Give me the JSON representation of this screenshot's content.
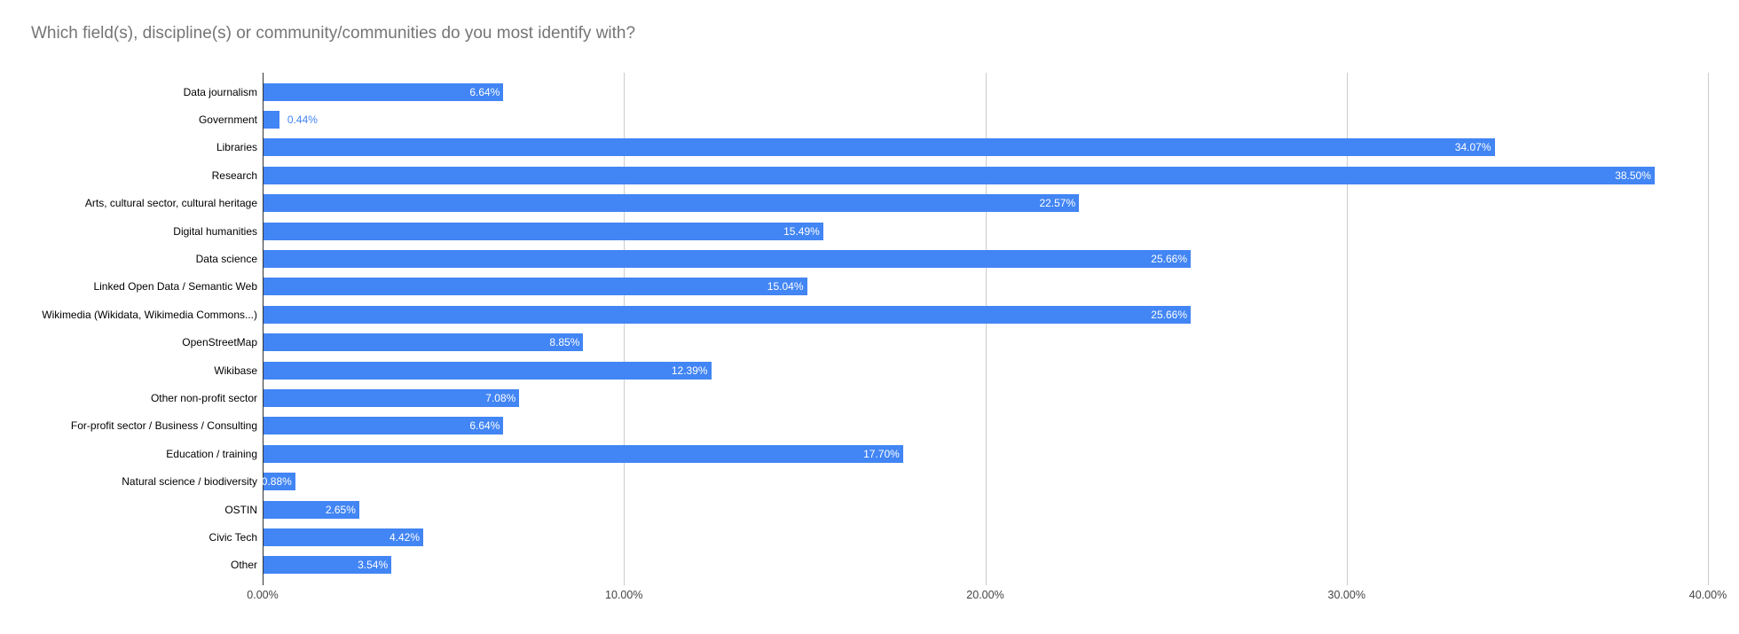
{
  "chart_data": {
    "type": "bar",
    "orientation": "horizontal",
    "title": "Which field(s), discipline(s) or community/communities do you most identify with?",
    "categories": [
      "Data journalism",
      "Government",
      "Libraries",
      "Research",
      "Arts, cultural sector, cultural heritage",
      "Digital humanities",
      "Data science",
      "Linked Open Data / Semantic Web",
      "Wikimedia (Wikidata, Wikimedia Commons...)",
      "OpenStreetMap",
      "Wikibase",
      "Other non-profit sector",
      "For-profit sector / Business / Consulting",
      "Education / training",
      "Natural science / biodiversity",
      "OSTIN",
      "Civic Tech",
      "Other"
    ],
    "values": [
      6.64,
      0.44,
      34.07,
      38.5,
      22.57,
      15.49,
      25.66,
      15.04,
      25.66,
      8.85,
      12.39,
      7.08,
      6.64,
      17.7,
      0.88,
      2.65,
      4.42,
      3.54
    ],
    "value_labels": [
      "6.64%",
      "0.44%",
      "34.07%",
      "38.50%",
      "22.57%",
      "15.49%",
      "25.66%",
      "15.04%",
      "25.66%",
      "8.85%",
      "12.39%",
      "7.08%",
      "6.64%",
      "17.70%",
      "0.88%",
      "2.65%",
      "4.42%",
      "3.54%"
    ],
    "xlabel": "",
    "ylabel": "",
    "xlim": [
      0,
      40
    ],
    "x_tick_values": [
      0,
      10,
      20,
      30,
      40
    ],
    "x_tick_labels": [
      "0.00%",
      "10.00%",
      "20.00%",
      "30.00%",
      "40.00%"
    ],
    "grid": true,
    "legend": "none",
    "colors": {
      "bar": "#4285f4",
      "value_label_inside": "#ffffff",
      "value_label_outside": "#4285f4",
      "title": "#757575",
      "axis_tick_label": "#444444",
      "gridline": "#cccccc",
      "baseline": "#333333",
      "background": "#ffffff"
    }
  }
}
